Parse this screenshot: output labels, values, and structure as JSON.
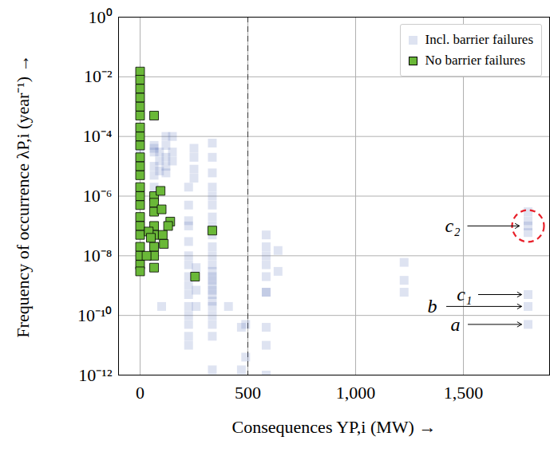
{
  "chart_data": {
    "type": "scatter",
    "x_label": "Consequences YP,i (MW)",
    "y_label": "Frequency of occurrence λP,i (year⁻¹)",
    "xlim": [
      -100,
      1900
    ],
    "xticks": [
      0,
      500,
      {
        "value": 1000,
        "label": "1,000"
      },
      {
        "value": 1500,
        "label": "1,500"
      }
    ],
    "ylim": [
      1e-12,
      1
    ],
    "yticks": [
      {
        "value": 1,
        "label": "10⁰"
      },
      {
        "value": 0.01,
        "label": "10⁻²"
      },
      {
        "value": 0.0001,
        "label": "10⁻⁴"
      },
      {
        "value": 1e-06,
        "label": "10⁻⁶"
      },
      {
        "value": 1e-08,
        "label": "10⁻⁸"
      },
      {
        "value": 1e-10,
        "label": "10⁻¹⁰"
      },
      {
        "value": 1e-12,
        "label": "10⁻¹²"
      }
    ],
    "log": "y",
    "grid": true,
    "legend": "upper right",
    "series": [
      {
        "name": "Incl. barrier failures",
        "color": "#4a64b0",
        "marker": "square",
        "x": [
          0,
          0,
          0,
          0,
          0,
          0,
          0,
          65,
          65,
          65,
          65,
          65,
          65,
          90,
          90,
          90,
          120,
          120,
          120,
          120,
          120,
          150,
          150,
          150,
          250,
          250,
          250,
          250,
          225,
          225,
          225,
          225,
          225,
          225,
          225,
          225,
          225,
          225,
          225,
          225,
          225,
          225,
          225,
          260,
          260,
          260,
          100,
          335,
          335,
          335,
          335,
          335,
          335,
          335,
          335,
          335,
          335,
          335,
          335,
          335,
          335,
          335,
          335,
          335,
          335,
          335,
          335,
          335,
          335,
          335,
          335,
          410,
          470,
          470,
          490,
          490,
          585,
          585,
          585,
          585,
          585,
          585,
          585,
          585,
          585,
          585,
          640,
          640,
          1225,
          1225,
          1225,
          1800,
          1800,
          1800,
          1800,
          1800,
          1800,
          1800
        ],
        "values": [
          0.00015,
          0.0001,
          7e-05,
          5e-05,
          3e-05,
          2e-05,
          1e-05,
          5e-05,
          3e-05,
          1e-05,
          5e-06,
          2e-06,
          4e-05,
          3e-05,
          1.5e-05,
          7e-06,
          0.0001,
          5e-05,
          2e-05,
          1e-05,
          6e-06,
          0.0001,
          3e-05,
          1.5e-05,
          4e-05,
          2e-05,
          8e-06,
          4e-06,
          2e-06,
          5e-07,
          1.5e-07,
          1e-07,
          3e-08,
          1e-08,
          5e-09,
          2e-09,
          1e-09,
          5e-10,
          2e-10,
          1e-10,
          5e-11,
          2e-11,
          1e-11,
          7e-10,
          2e-10,
          4e-09,
          2e-10,
          6e-05,
          2e-05,
          6e-06,
          2e-06,
          1e-06,
          5e-07,
          2e-07,
          1e-07,
          5e-08,
          2e-08,
          1e-08,
          5e-09,
          3e-09,
          2e-09,
          1.5e-09,
          1e-09,
          7e-10,
          5e-10,
          3e-10,
          2e-10,
          1e-10,
          5e-11,
          2e-11,
          1.5e-12,
          2e-10,
          4e-11,
          1.5e-12,
          5e-11,
          4e-12,
          5e-08,
          2e-08,
          1e-08,
          5e-09,
          2e-09,
          6e-10,
          6e-10,
          4e-11,
          1e-11,
          1e-12,
          1.5e-08,
          3e-09,
          6e-09,
          1.5e-09,
          6e-10,
          3e-07,
          1.5e-07,
          1e-07,
          6e-08,
          5e-10,
          2e-10,
          5e-11
        ]
      },
      {
        "name": "No barrier failures",
        "color": "#6ab838",
        "marker": "square",
        "x": [
          0,
          0,
          0,
          0,
          0,
          0,
          0,
          0,
          0,
          0,
          0,
          0,
          0,
          0,
          0,
          0,
          0,
          0,
          0,
          0,
          0,
          0,
          65,
          65,
          65,
          65,
          65,
          65,
          65,
          65,
          65,
          95,
          100,
          140,
          130,
          40,
          30,
          105,
          110,
          255,
          335,
          50
        ],
        "values": [
          0.015,
          0.008,
          0.004,
          0.002,
          0.001,
          0.0005,
          0.0002,
          0.0001,
          5e-05,
          2e-05,
          1e-05,
          5e-06,
          2e-06,
          1e-06,
          5e-07,
          2e-07,
          1e-07,
          5e-08,
          2e-08,
          1e-08,
          5e-09,
          3e-09,
          0.0005,
          1e-06,
          6e-07,
          3e-07,
          1e-07,
          5e-08,
          2e-08,
          1e-08,
          4e-09,
          1.5e-06,
          3.6e-07,
          1.4e-07,
          1e-07,
          6.5e-08,
          1e-08,
          5e-08,
          2.5e-08,
          2e-09,
          7e-08,
          4e-08
        ]
      }
    ],
    "reference_line": {
      "x": 500,
      "line_style": "dashed"
    },
    "highlight": {
      "x": 1800,
      "y": 1e-07,
      "color": "#e8202a",
      "line_style": "dashed"
    },
    "annotations": [
      {
        "text": "c₂",
        "x": 1450,
        "y": 1e-07,
        "arrow": [
          1520,
          1e-07,
          1760,
          1e-07
        ]
      },
      {
        "text": "c₁",
        "x": 1505,
        "y": 5e-10,
        "arrow": [
          1570,
          5e-10,
          1770,
          5e-10
        ]
      },
      {
        "text": "b",
        "x": 1356,
        "y": 2e-10,
        "arrow": [
          1422,
          2e-10,
          1770,
          2e-10
        ]
      },
      {
        "text": "a",
        "x": 1463,
        "y": 5e-11,
        "arrow": [
          1522,
          5e-11,
          1770,
          5e-11
        ]
      }
    ]
  }
}
